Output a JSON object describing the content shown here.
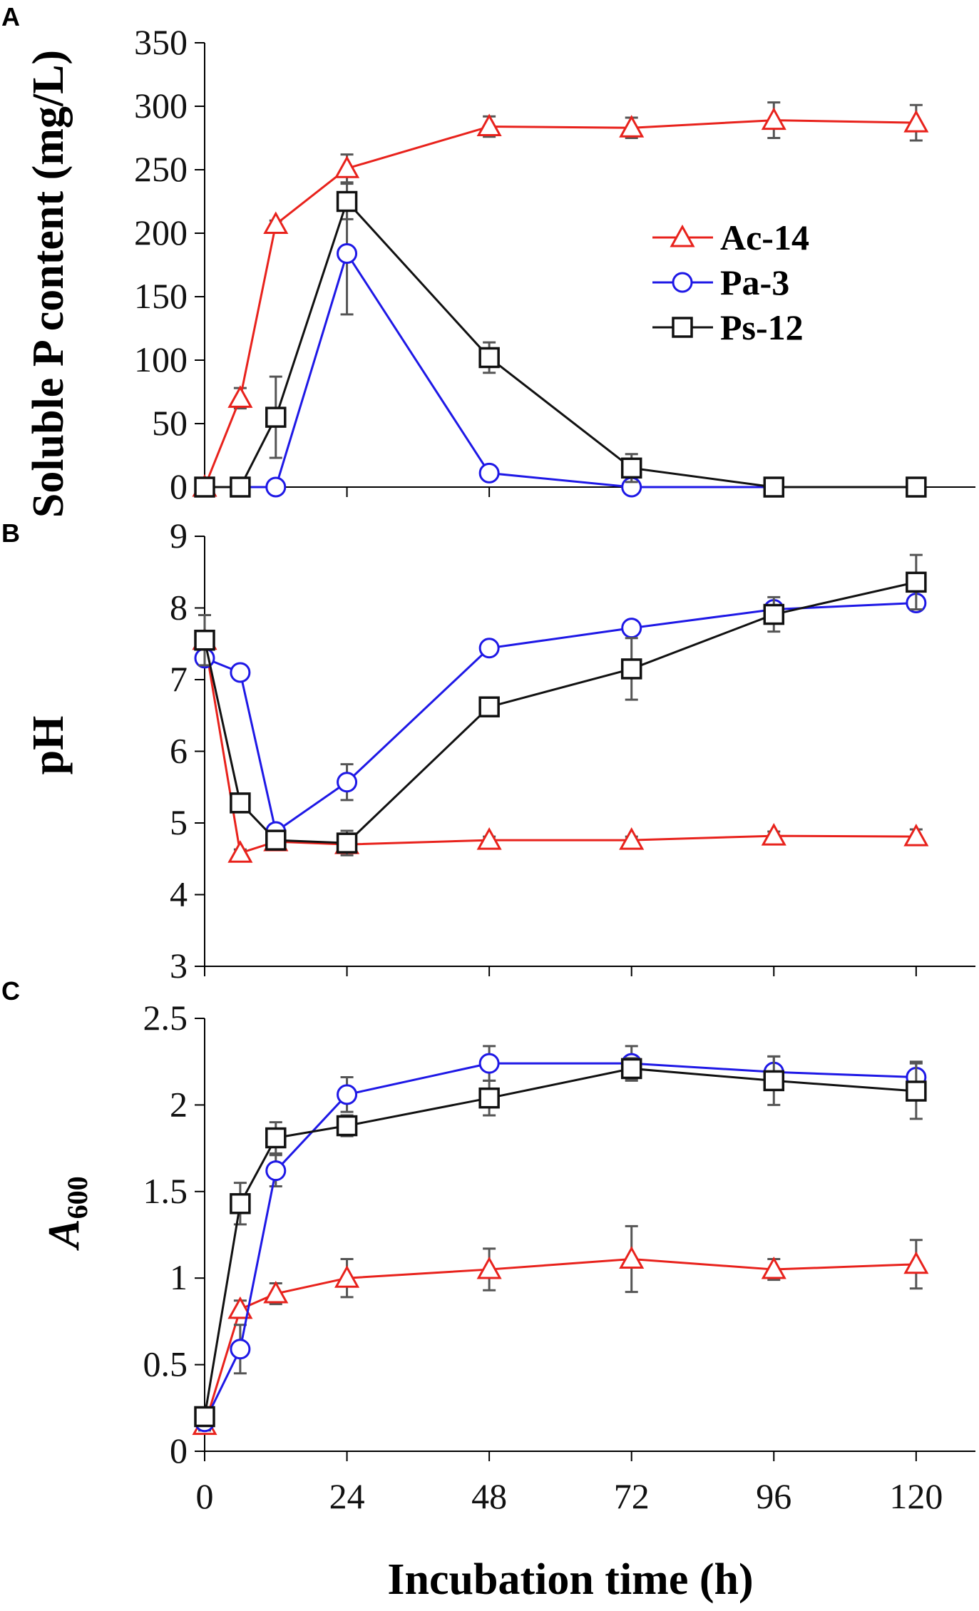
{
  "chart_data": [
    {
      "panel": "A",
      "type": "line",
      "ylabel": "Soluble P content (mg/L)",
      "ylim": [
        0,
        350
      ],
      "yticks": [
        0,
        50,
        100,
        150,
        200,
        250,
        300,
        350
      ],
      "x": [
        0,
        6,
        12,
        24,
        48,
        72,
        96,
        120
      ],
      "series": [
        {
          "name": "Ac-14",
          "marker": "triangle",
          "color": "#e8221c",
          "values": [
            0,
            70,
            207,
            251,
            284,
            283,
            289,
            287
          ],
          "errors": [
            0,
            8,
            3,
            11,
            8,
            8,
            14,
            14
          ]
        },
        {
          "name": "Pa-3",
          "marker": "circle",
          "color": "#1e18e6",
          "values": [
            0,
            0,
            0,
            184,
            11,
            0,
            0,
            0
          ],
          "errors": [
            0,
            0,
            0,
            48,
            5,
            0,
            0,
            0
          ]
        },
        {
          "name": "Ps-12",
          "marker": "square",
          "color": "#111111",
          "values": [
            0,
            0,
            55,
            225,
            102,
            15,
            0,
            0
          ],
          "errors": [
            0,
            0,
            32,
            14,
            12,
            11,
            0,
            0
          ]
        }
      ],
      "legend": {
        "position": "top-right",
        "entries": [
          "Ac-14",
          "Pa-3",
          "Ps-12"
        ]
      }
    },
    {
      "panel": "B",
      "type": "line",
      "ylabel": "pH",
      "ylim": [
        3,
        9
      ],
      "yticks": [
        3,
        4,
        5,
        6,
        7,
        8,
        9
      ],
      "x": [
        0,
        6,
        12,
        24,
        48,
        72,
        96,
        120
      ],
      "series": [
        {
          "name": "Ac-14",
          "marker": "triangle",
          "color": "#e8221c",
          "values": [
            7.55,
            4.58,
            4.74,
            4.7,
            4.76,
            4.76,
            4.82,
            4.81
          ],
          "errors": [
            0.05,
            0.05,
            0.05,
            0.05,
            0.05,
            0.05,
            0.06,
            0.1
          ]
        },
        {
          "name": "Pa-3",
          "marker": "circle",
          "color": "#1e18e6",
          "values": [
            7.3,
            7.1,
            4.88,
            5.57,
            7.44,
            7.72,
            7.98,
            8.07
          ],
          "errors": [
            0.05,
            0.05,
            0.05,
            0.25,
            0.05,
            0.05,
            0.05,
            0.05
          ]
        },
        {
          "name": "Ps-12",
          "marker": "square",
          "color": "#111111",
          "values": [
            7.55,
            5.28,
            4.76,
            4.72,
            6.62,
            7.15,
            7.91,
            8.36
          ],
          "errors": [
            0.35,
            0.08,
            0.1,
            0.17,
            0.05,
            0.43,
            0.24,
            0.38
          ]
        }
      ]
    },
    {
      "panel": "C",
      "type": "line",
      "ylabel_main": "A",
      "ylabel_sub": "600",
      "ylim": [
        0,
        2.5
      ],
      "yticks": [
        "0",
        "0.5",
        "1",
        "1.5",
        "2",
        "2.5"
      ],
      "xlabel": "Incubation time (h)",
      "xticks": [
        "0",
        "24",
        "48",
        "72",
        "96",
        "120"
      ],
      "x": [
        0,
        6,
        12,
        24,
        48,
        72,
        96,
        120
      ],
      "series": [
        {
          "name": "Ac-14",
          "marker": "triangle",
          "color": "#e8221c",
          "values": [
            0.15,
            0.82,
            0.91,
            1.0,
            1.05,
            1.11,
            1.05,
            1.08
          ],
          "errors": [
            0.03,
            0.05,
            0.06,
            0.11,
            0.12,
            0.19,
            0.06,
            0.14
          ]
        },
        {
          "name": "Pa-3",
          "marker": "circle",
          "color": "#1e18e6",
          "values": [
            0.17,
            0.59,
            1.62,
            2.06,
            2.24,
            2.24,
            2.19,
            2.16
          ],
          "errors": [
            0.05,
            0.14,
            0.09,
            0.1,
            0.1,
            0.1,
            0.09,
            0.09
          ]
        },
        {
          "name": "Ps-12",
          "marker": "square",
          "color": "#111111",
          "values": [
            0.2,
            1.43,
            1.81,
            1.88,
            2.04,
            2.21,
            2.14,
            2.08
          ],
          "errors": [
            0.05,
            0.12,
            0.09,
            0.06,
            0.1,
            0.06,
            0.14,
            0.16
          ]
        }
      ]
    }
  ]
}
